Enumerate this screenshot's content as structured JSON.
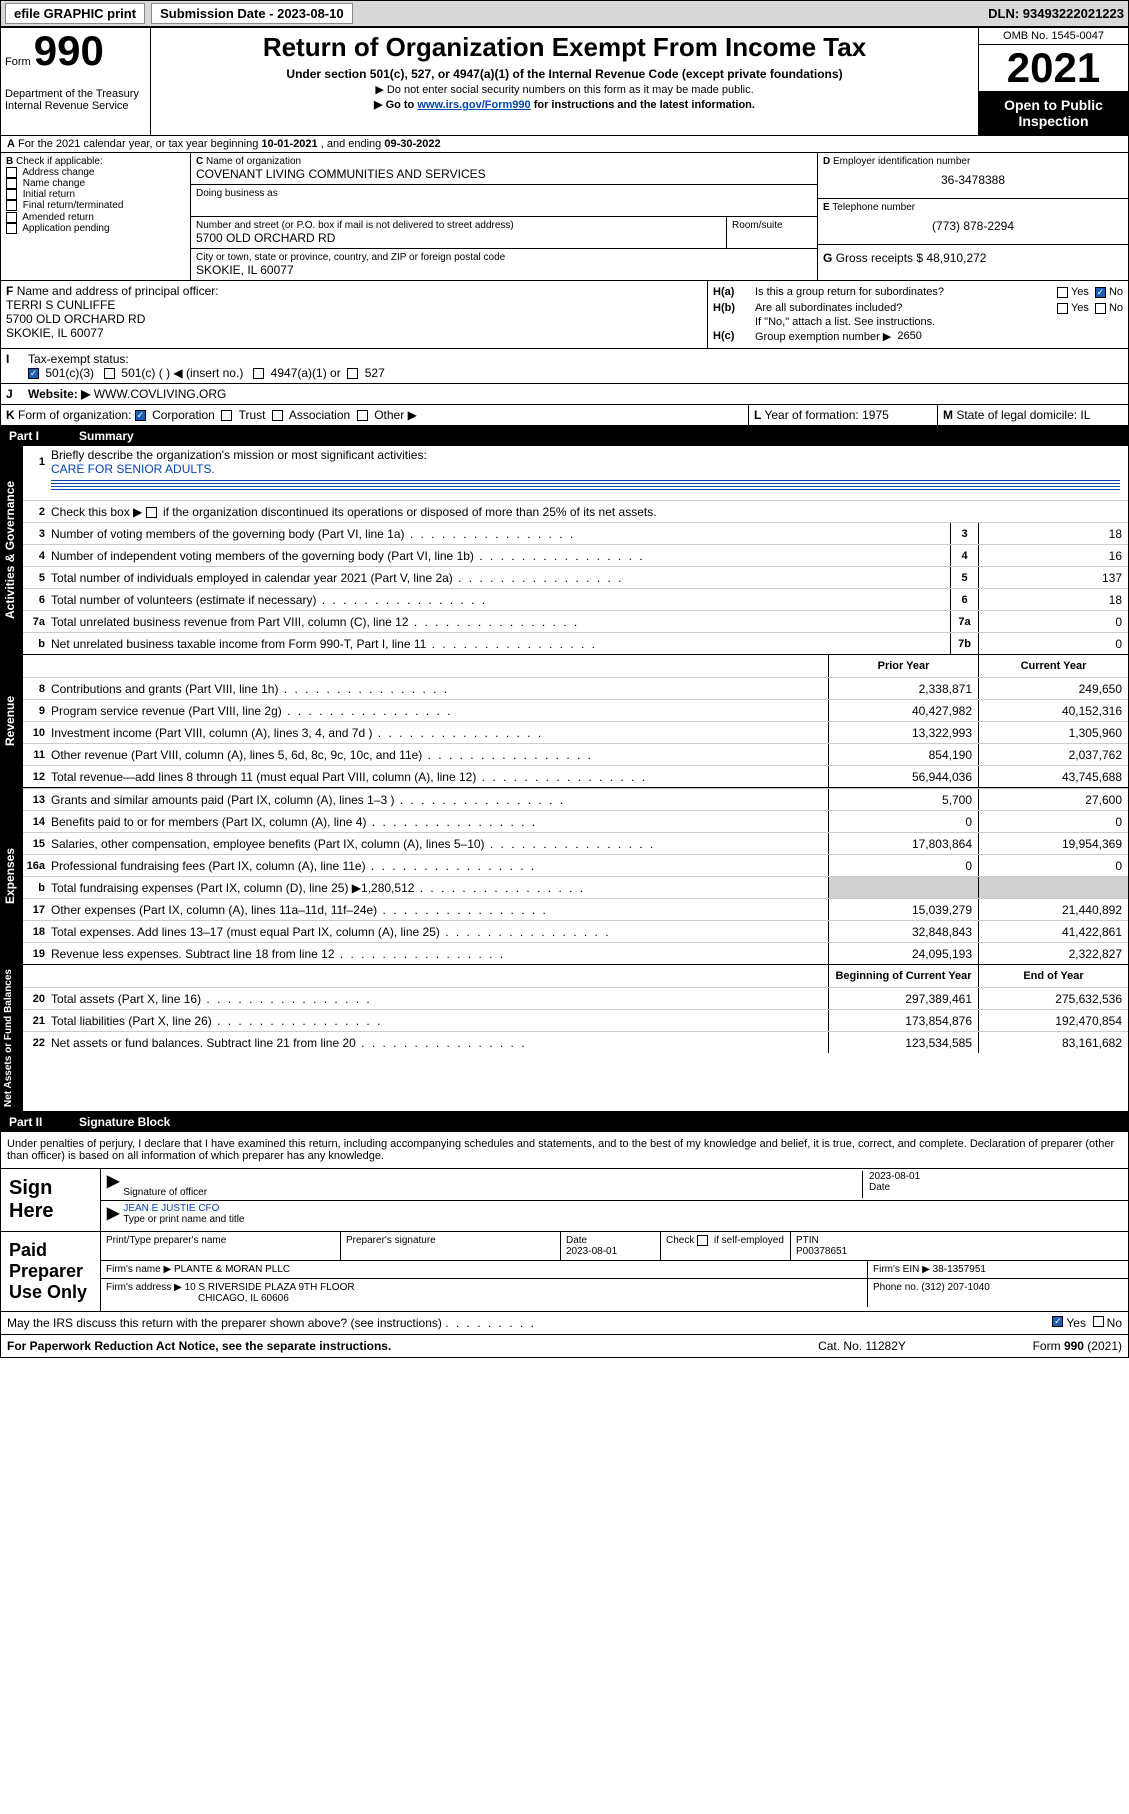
{
  "topbar": {
    "efile": "efile GRAPHIC print",
    "submission_label": "Submission Date - 2023-08-10",
    "dln": "DLN: 93493222021223"
  },
  "header": {
    "form_word": "Form",
    "form_num": "990",
    "dept": "Department of the Treasury",
    "irs": "Internal Revenue Service",
    "title": "Return of Organization Exempt From Income Tax",
    "subtitle": "Under section 501(c), 527, or 4947(a)(1) of the Internal Revenue Code (except private foundations)",
    "note1": "▶ Do not enter social security numbers on this form as it may be made public.",
    "note2_pre": "▶ Go to ",
    "note2_link": "www.irs.gov/Form990",
    "note2_post": " for instructions and the latest information.",
    "omb": "OMB No. 1545-0047",
    "year": "2021",
    "open": "Open to Public Inspection"
  },
  "sectionA": {
    "text_pre": "For the 2021 calendar year, or tax year beginning ",
    "begin": "10-01-2021",
    "mid": " , and ending ",
    "end": "09-30-2022"
  },
  "colB": {
    "label": "Check if applicable:",
    "items": [
      "Address change",
      "Name change",
      "Initial return",
      "Final return/terminated",
      "Amended return",
      "Application pending"
    ],
    "prefix": "B"
  },
  "colC": {
    "name_label": "Name of organization",
    "name": "COVENANT LIVING COMMUNITIES AND SERVICES",
    "dba_label": "Doing business as",
    "addr_label": "Number and street (or P.O. box if mail is not delivered to street address)",
    "room_label": "Room/suite",
    "addr": "5700 OLD ORCHARD RD",
    "city_label": "City or town, state or province, country, and ZIP or foreign postal code",
    "city": "SKOKIE, IL  60077",
    "prefix": "C"
  },
  "colD": {
    "label": "Employer identification number",
    "value": "36-3478388",
    "prefix": "D"
  },
  "colE": {
    "label": "Telephone number",
    "value": "(773) 878-2294",
    "prefix": "E"
  },
  "colG": {
    "label": "Gross receipts $",
    "value": "48,910,272",
    "prefix": "G"
  },
  "rowF": {
    "prefix": "F",
    "label": "Name and address of principal officer:",
    "name": "TERRI S CUNLIFFE",
    "addr": "5700 OLD ORCHARD RD",
    "city": "SKOKIE, IL  60077"
  },
  "rowH": {
    "a_label": "Is this a group return for subordinates?",
    "a_prefix": "H(a)",
    "b_label": "Are all subordinates included?",
    "b_prefix": "H(b)",
    "b_note": "If \"No,\" attach a list. See instructions.",
    "c_label": "Group exemption number ▶",
    "c_prefix": "H(c)",
    "c_value": "2650",
    "yes": "Yes",
    "no": "No"
  },
  "rowI": {
    "prefix": "I",
    "label": "Tax-exempt status:",
    "opt1": "501(c)(3)",
    "opt2": "501(c) (   ) ◀ (insert no.)",
    "opt3": "4947(a)(1) or",
    "opt4": "527"
  },
  "rowJ": {
    "prefix": "J",
    "label": "Website: ▶",
    "value": "WWW.COVLIVING.ORG"
  },
  "rowK": {
    "prefix": "K",
    "label": "Form of organization:",
    "opts": [
      "Corporation",
      "Trust",
      "Association",
      "Other ▶"
    ]
  },
  "rowL": {
    "prefix": "L",
    "label": "Year of formation:",
    "value": "1975"
  },
  "rowM": {
    "prefix": "M",
    "label": "State of legal domicile:",
    "value": "IL"
  },
  "part1": {
    "num": "Part I",
    "title": "Summary",
    "tab_ag": "Activities & Governance",
    "tab_rev": "Revenue",
    "tab_exp": "Expenses",
    "tab_na": "Net Assets or Fund Balances",
    "l1_label": "Briefly describe the organization's mission or most significant activities:",
    "l1_text": "CARE FOR SENIOR ADULTS.",
    "l2": "Check this box ▶      if the organization discontinued its operations or disposed of more than 25% of its net assets.",
    "lines_ag": [
      {
        "n": "3",
        "d": "Number of voting members of the governing body (Part VI, line 1a)",
        "i": "3",
        "v": "18"
      },
      {
        "n": "4",
        "d": "Number of independent voting members of the governing body (Part VI, line 1b)",
        "i": "4",
        "v": "16"
      },
      {
        "n": "5",
        "d": "Total number of individuals employed in calendar year 2021 (Part V, line 2a)",
        "i": "5",
        "v": "137"
      },
      {
        "n": "6",
        "d": "Total number of volunteers (estimate if necessary)",
        "i": "6",
        "v": "18"
      },
      {
        "n": "7a",
        "d": "Total unrelated business revenue from Part VIII, column (C), line 12",
        "i": "7a",
        "v": "0"
      },
      {
        "n": "b",
        "d": "Net unrelated business taxable income from Form 990-T, Part I, line 11",
        "i": "7b",
        "v": "0"
      }
    ],
    "col_prior": "Prior Year",
    "col_current": "Current Year",
    "lines_rev": [
      {
        "n": "8",
        "d": "Contributions and grants (Part VIII, line 1h)",
        "p": "2,338,871",
        "c": "249,650"
      },
      {
        "n": "9",
        "d": "Program service revenue (Part VIII, line 2g)",
        "p": "40,427,982",
        "c": "40,152,316"
      },
      {
        "n": "10",
        "d": "Investment income (Part VIII, column (A), lines 3, 4, and 7d )",
        "p": "13,322,993",
        "c": "1,305,960"
      },
      {
        "n": "11",
        "d": "Other revenue (Part VIII, column (A), lines 5, 6d, 8c, 9c, 10c, and 11e)",
        "p": "854,190",
        "c": "2,037,762"
      },
      {
        "n": "12",
        "d": "Total revenue—add lines 8 through 11 (must equal Part VIII, column (A), line 12)",
        "p": "56,944,036",
        "c": "43,745,688"
      }
    ],
    "lines_exp": [
      {
        "n": "13",
        "d": "Grants and similar amounts paid (Part IX, column (A), lines 1–3 )",
        "p": "5,700",
        "c": "27,600"
      },
      {
        "n": "14",
        "d": "Benefits paid to or for members (Part IX, column (A), line 4)",
        "p": "0",
        "c": "0"
      },
      {
        "n": "15",
        "d": "Salaries, other compensation, employee benefits (Part IX, column (A), lines 5–10)",
        "p": "17,803,864",
        "c": "19,954,369"
      },
      {
        "n": "16a",
        "d": "Professional fundraising fees (Part IX, column (A), line 11e)",
        "p": "0",
        "c": "0"
      },
      {
        "n": "b",
        "d": "Total fundraising expenses (Part IX, column (D), line 25) ▶1,280,512",
        "p": "",
        "c": "",
        "gray": true
      },
      {
        "n": "17",
        "d": "Other expenses (Part IX, column (A), lines 11a–11d, 11f–24e)",
        "p": "15,039,279",
        "c": "21,440,892"
      },
      {
        "n": "18",
        "d": "Total expenses. Add lines 13–17 (must equal Part IX, column (A), line 25)",
        "p": "32,848,843",
        "c": "41,422,861"
      },
      {
        "n": "19",
        "d": "Revenue less expenses. Subtract line 18 from line 12",
        "p": "24,095,193",
        "c": "2,322,827"
      }
    ],
    "col_begin": "Beginning of Current Year",
    "col_end": "End of Year",
    "lines_na": [
      {
        "n": "20",
        "d": "Total assets (Part X, line 16)",
        "p": "297,389,461",
        "c": "275,632,536"
      },
      {
        "n": "21",
        "d": "Total liabilities (Part X, line 26)",
        "p": "173,854,876",
        "c": "192,470,854"
      },
      {
        "n": "22",
        "d": "Net assets or fund balances. Subtract line 21 from line 20",
        "p": "123,534,585",
        "c": "83,161,682"
      }
    ]
  },
  "part2": {
    "num": "Part II",
    "title": "Signature Block",
    "penalty": "Under penalties of perjury, I declare that I have examined this return, including accompanying schedules and statements, and to the best of my knowledge and belief, it is true, correct, and complete. Declaration of preparer (other than officer) is based on all information of which preparer has any knowledge."
  },
  "sign": {
    "here": "Sign Here",
    "sig_officer": "Signature of officer",
    "date_label": "Date",
    "date": "2023-08-01",
    "name": "JEAN E JUSTIE CFO",
    "name_label": "Type or print name and title"
  },
  "preparer": {
    "label": "Paid Preparer Use Only",
    "print_label": "Print/Type preparer's name",
    "sig_label": "Preparer's signature",
    "date_label": "Date",
    "date": "2023-08-01",
    "check_label": "Check        if self-employed",
    "ptin_label": "PTIN",
    "ptin": "P00378651",
    "firm_name_label": "Firm's name    ▶",
    "firm_name": "PLANTE & MORAN PLLC",
    "firm_ein_label": "Firm's EIN ▶",
    "firm_ein": "38-1357951",
    "firm_addr_label": "Firm's address ▶",
    "firm_addr1": "10 S RIVERSIDE PLAZA 9TH FLOOR",
    "firm_addr2": "CHICAGO, IL  60606",
    "phone_label": "Phone no.",
    "phone": "(312) 207-1040"
  },
  "footer": {
    "discuss": "May the IRS discuss this return with the preparer shown above? (see instructions)",
    "yes": "Yes",
    "no": "No",
    "paperwork": "For Paperwork Reduction Act Notice, see the separate instructions.",
    "cat": "Cat. No. 11282Y",
    "form": "Form 990 (2021)"
  }
}
